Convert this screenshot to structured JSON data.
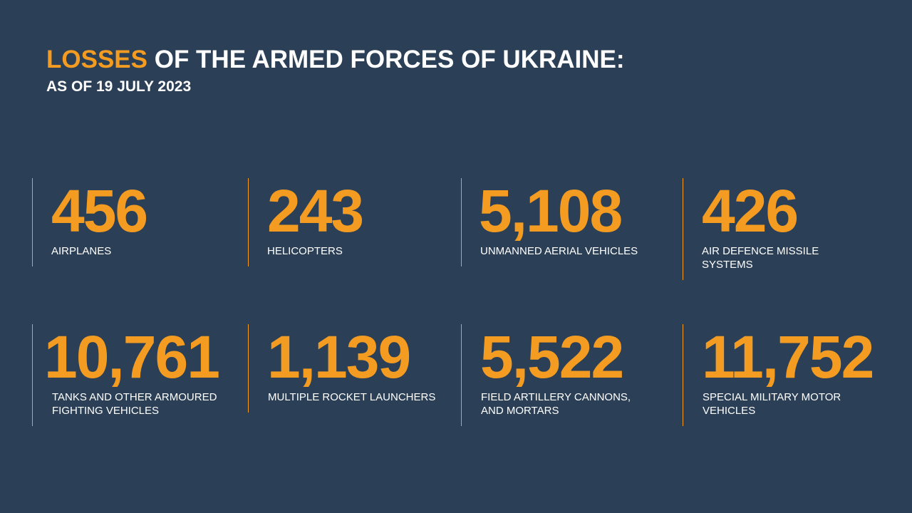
{
  "header": {
    "title_highlight": "LOSSES",
    "title_rest": "OF THE ARMED FORCES OF UKRAINE:",
    "subtitle": "AS OF 19 JULY 2023"
  },
  "items": [
    {
      "value": "456",
      "label": [
        "AIRPLANES"
      ]
    },
    {
      "value": "243",
      "label": [
        "HELICOPTERS"
      ]
    },
    {
      "value": "5,108",
      "label": [
        "UNMANNED AERIAL VEHICLES"
      ]
    },
    {
      "value": "426",
      "label": [
        "AIR DEFENCE MISSILE",
        "SYSTEMS"
      ]
    },
    {
      "value": "10,761",
      "label": [
        "TANKS AND OTHER ARMOURED",
        "FIGHTING VEHICLES"
      ]
    },
    {
      "value": "1,139",
      "label": [
        "MULTIPLE ROCKET LAUNCHERS"
      ]
    },
    {
      "value": "5,522",
      "label": [
        "FIELD ARTILLERY CANNONS,",
        "AND MORTARS"
      ]
    },
    {
      "value": "11,752",
      "label": [
        "SPECIAL MILITARY MOTOR",
        "VEHICLES"
      ]
    }
  ]
}
